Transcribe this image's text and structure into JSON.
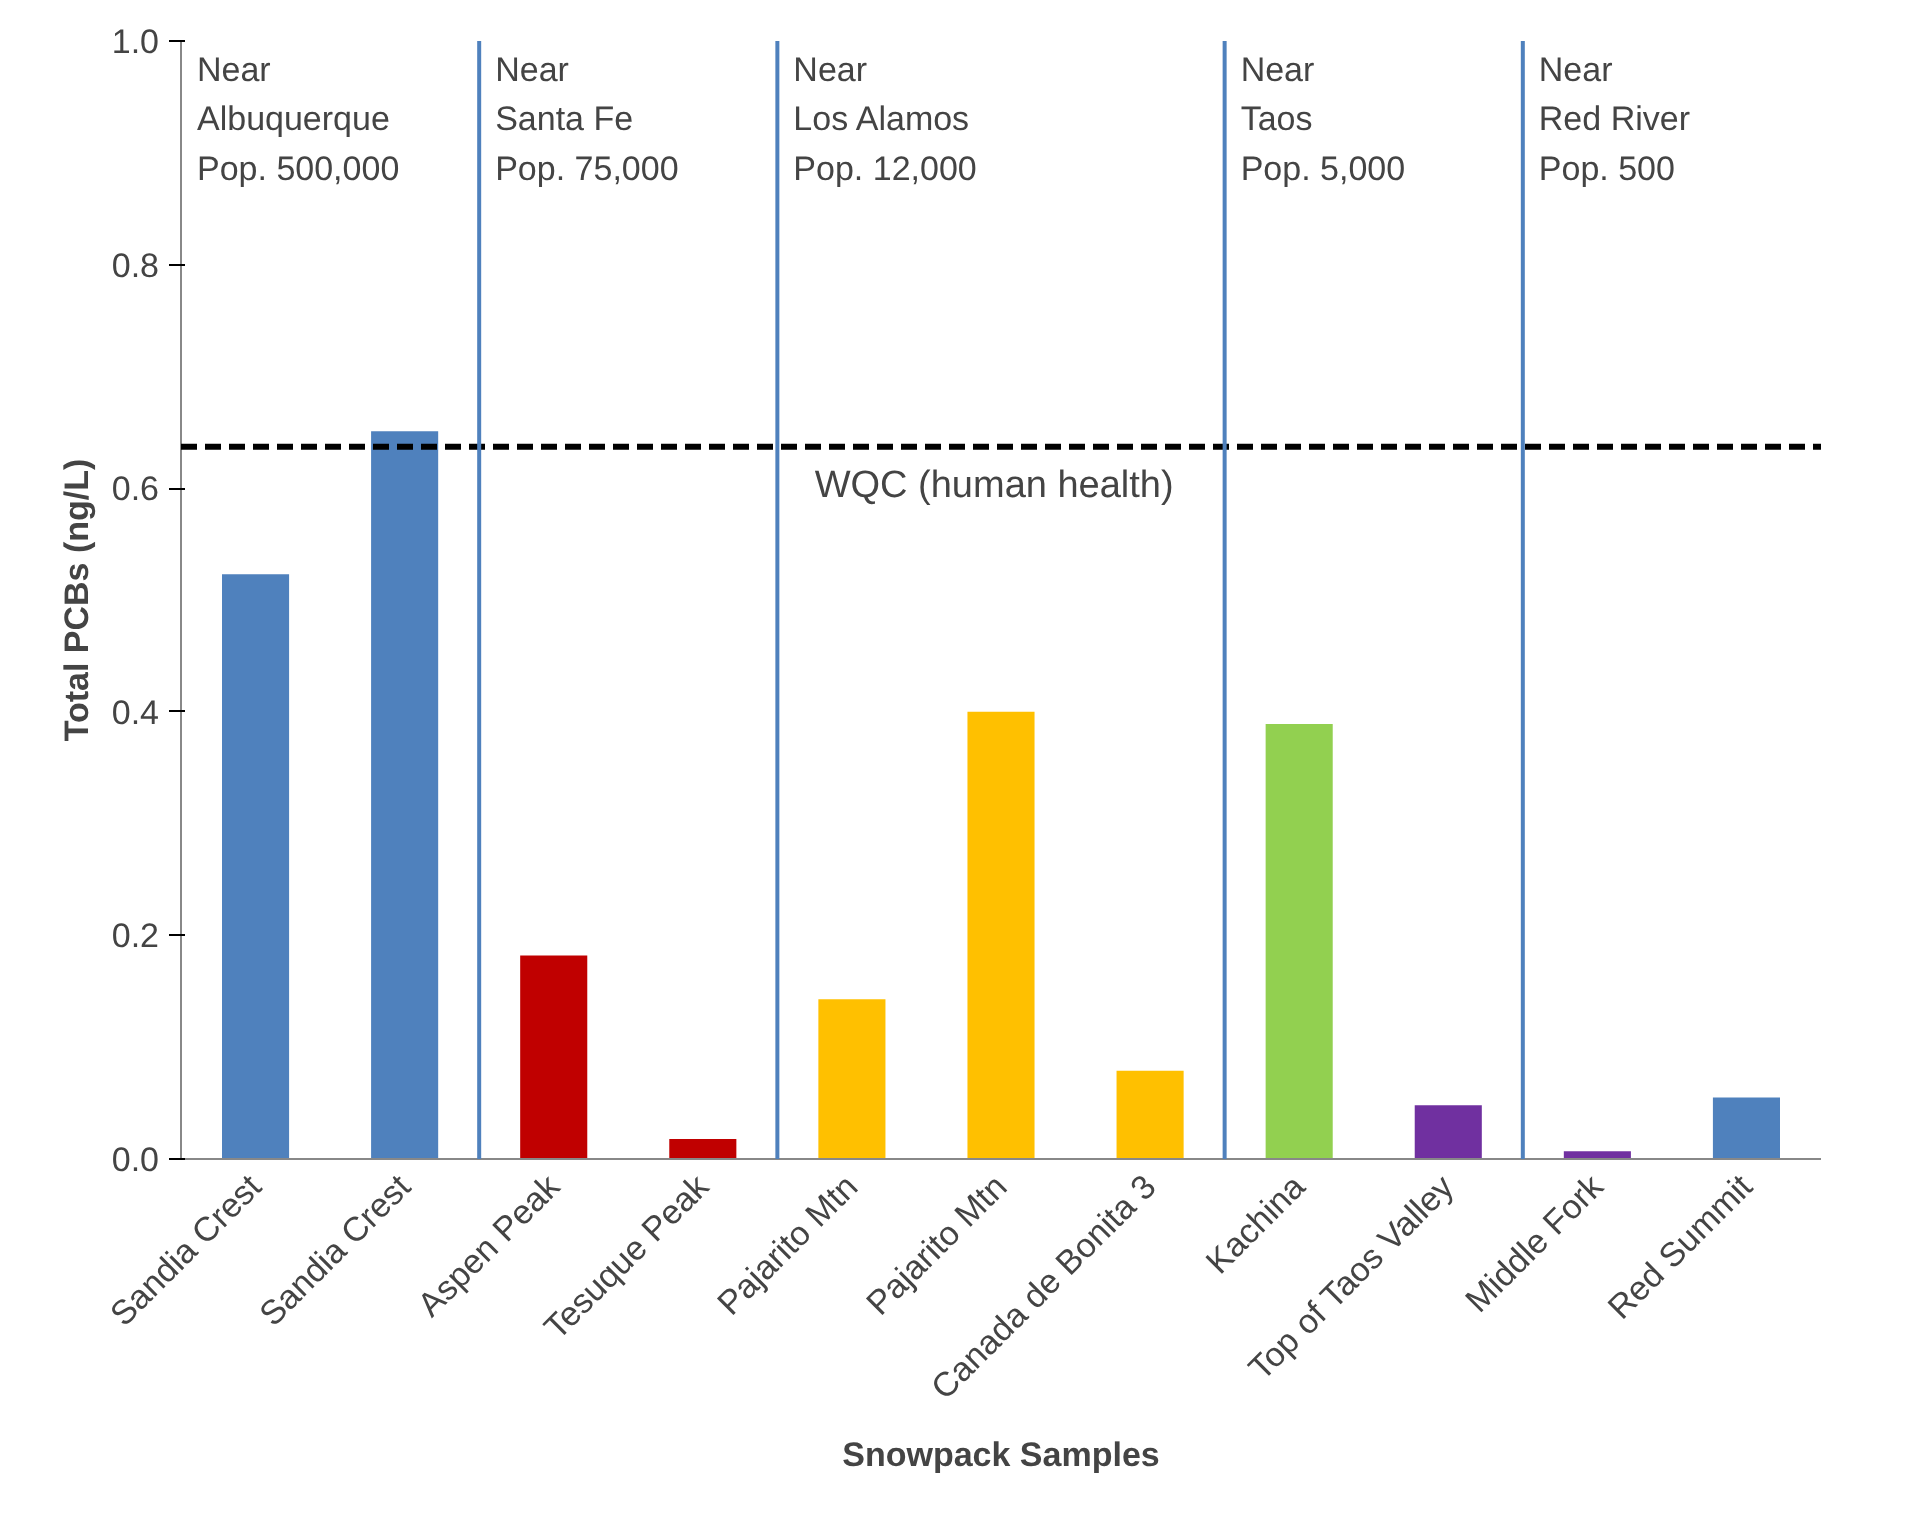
{
  "chart_data": {
    "type": "bar",
    "xlabel": "Snowpack Samples",
    "ylabel": "Total PCBs (ng/L)",
    "categories": [
      "Sandia Crest",
      "Sandia Crest",
      "Aspen Peak",
      "Tesuque Peak",
      "Pajarito Mtn",
      "Pajarito Mtn",
      "Canada de Bonita 3",
      "Kachina",
      "Top of Taos Valley",
      "Middle Fork",
      "Red Summit"
    ],
    "values": [
      0.523,
      0.651,
      0.182,
      0.018,
      0.143,
      0.4,
      0.079,
      0.389,
      0.048,
      0.007,
      0.055
    ],
    "colors": [
      "#4f81bd",
      "#4f81bd",
      "#c00000",
      "#c00000",
      "#ffc000",
      "#ffc000",
      "#ffc000",
      "#92d050",
      "#7030a0",
      "#7030a0",
      "#4f81bd"
    ],
    "ylim": [
      0,
      1
    ],
    "yticks": [
      {
        "value": 0,
        "label": "0.0"
      },
      {
        "value": 0.2,
        "label": "0.2"
      },
      {
        "value": 0.4,
        "label": "0.4"
      },
      {
        "value": 0.6,
        "label": "0.6"
      },
      {
        "value": 0.8,
        "label": "0.8"
      },
      {
        "value": 1,
        "label": "1.0"
      }
    ],
    "grid": false,
    "ref_lines": [
      {
        "axis": "y",
        "value": 0.637,
        "label": "WQC (human health)",
        "color": "#000000",
        "line_style": "dashed"
      }
    ],
    "annotations": [
      "Near\nAlbuquerque\nPop. 500,000",
      "Near\nSanta Fe\nPop. 75,000",
      "Near\nLos Alamos\nPop. 12,000",
      "Near\nTaos\nPop. 5,000",
      "Near\nRed River\nPop. 500"
    ]
  }
}
